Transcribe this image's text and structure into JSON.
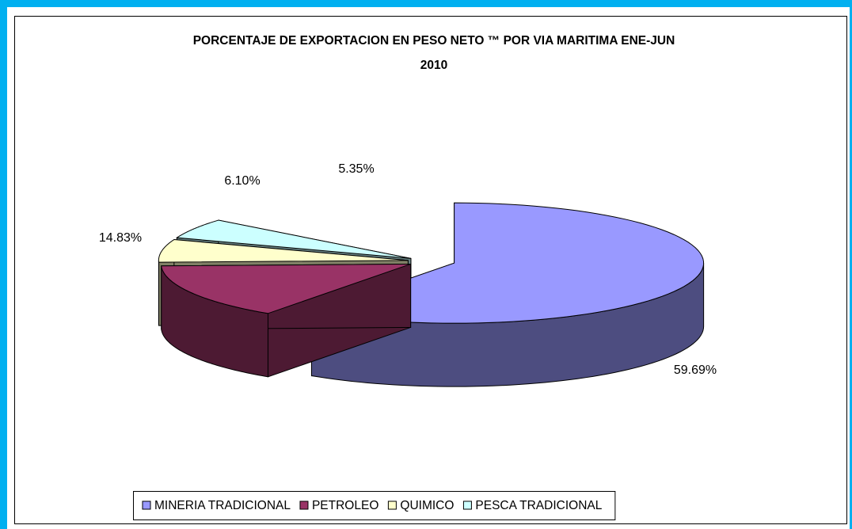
{
  "chart_data": {
    "type": "pie3d",
    "title": [
      "PORCENTAJE DE EXPORTACION EN PESO NETO ™ POR VIA MARITIMA ENE-JUN",
      "2010"
    ],
    "categories": [
      "MINERIA TRADICIONAL",
      "PETROLEO",
      "QUIMICO",
      "PESCA TRADICIONAL"
    ],
    "values": [
      59.69,
      14.83,
      6.1,
      5.35
    ],
    "value_labels": [
      "59.69%",
      "14.83%",
      "6.10%",
      "5.35%"
    ],
    "colors": [
      "#9999ff",
      "#993366",
      "#ffffcc",
      "#ccffff"
    ],
    "legend": "bottom"
  }
}
